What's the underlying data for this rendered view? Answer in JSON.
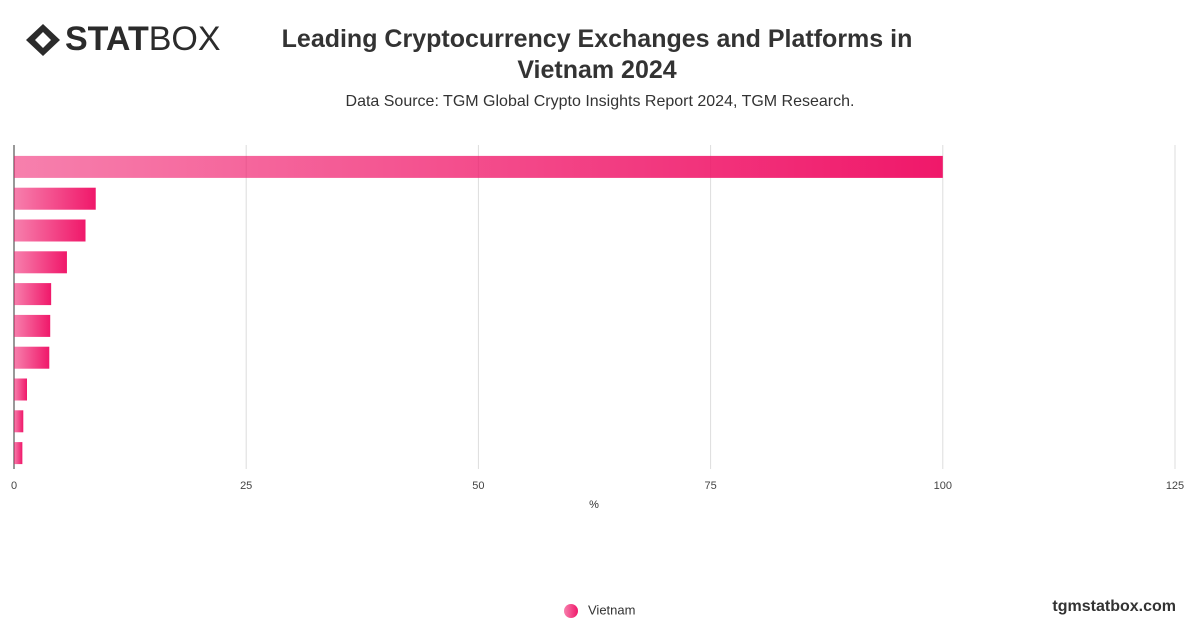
{
  "brand": {
    "bold": "STAT",
    "light": "BOX"
  },
  "footer": "tgmstatbox.com",
  "chart_data": {
    "type": "hbar",
    "title": "Leading Cryptocurrency Exchanges and Platforms in Vietnam 2024",
    "subtitle": "Data Source: TGM Global Crypto Insights Report 2024, TGM Research.",
    "x_label": "%",
    "categories": [
      null,
      null,
      null,
      null,
      null,
      null,
      null,
      null,
      null,
      null
    ],
    "series": [
      {
        "name": "Vietnam",
        "color": "#f0186a",
        "values": [
          100,
          8.8,
          7.7,
          5.7,
          4.0,
          3.9,
          3.8,
          1.4,
          1.0,
          0.9
        ]
      }
    ],
    "xlim": [
      0,
      125
    ],
    "xticks": [
      0,
      25,
      50,
      75,
      100,
      125
    ],
    "grid": true,
    "legend": "bottom"
  }
}
